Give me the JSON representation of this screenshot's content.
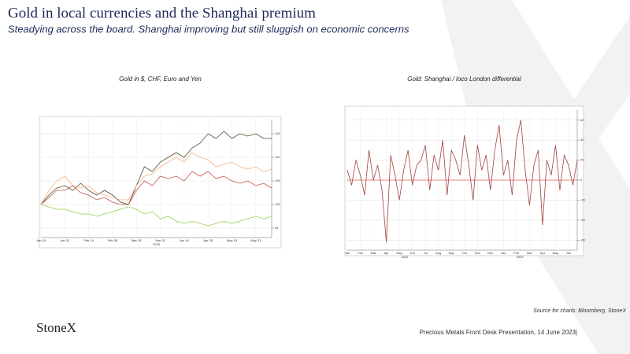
{
  "header": {
    "title": "Gold in local currencies and the Shanghai premium",
    "subtitle": "Steadying across the board.  Shanghai improving but still sluggish on economic concerns"
  },
  "chart_data": [
    {
      "type": "line",
      "title": "Gold in $, CHF, Euro and Yen",
      "categories": [
        "Jan 16",
        null,
        null,
        "Jan 31",
        null,
        null,
        "Feb 14",
        null,
        null,
        "Feb 28",
        null,
        null,
        "Mar 15",
        null,
        null,
        "Mar 31",
        null,
        null,
        "Apr 14",
        null,
        null,
        "Apr 28",
        null,
        null,
        "May 15",
        null,
        null,
        "May 31",
        null,
        null
      ],
      "x_group_labels": [
        "2023"
      ],
      "series": [
        {
          "color": "#4a4a2a",
          "values": [
            100,
            102,
            103.5,
            104,
            103,
            104.5,
            103,
            102,
            103,
            102,
            100.5,
            100,
            104,
            108,
            107,
            109,
            110,
            111,
            110,
            112,
            113,
            115,
            114,
            115.5,
            114,
            115,
            114.5,
            115,
            114,
            114
          ]
        },
        {
          "color": "#f4b183",
          "values": [
            100,
            103,
            105,
            106,
            104,
            103.5,
            104,
            102.5,
            102,
            101.5,
            101,
            101,
            104,
            106,
            106.5,
            108,
            109,
            110,
            109,
            111,
            110,
            109.5,
            108,
            108.5,
            109,
            108,
            107.5,
            108,
            107,
            107.5
          ]
        },
        {
          "color": "#c0504d",
          "values": [
            100,
            101.5,
            103,
            103,
            104,
            102.5,
            102,
            101,
            101.5,
            100.5,
            100,
            100,
            103,
            105,
            104,
            106,
            105.5,
            106,
            105,
            107,
            106,
            107,
            105.5,
            106,
            105,
            104.5,
            105,
            104,
            104.5,
            103.5
          ]
        },
        {
          "color": "#92d050",
          "values": [
            100,
            99.5,
            99,
            99,
            98.5,
            98,
            98,
            97.5,
            98,
            98.5,
            99,
            99.5,
            99,
            98,
            98.5,
            97,
            97.5,
            96.5,
            96,
            96.5,
            96,
            95.5,
            96,
            96.5,
            96,
            96.5,
            97,
            97.5,
            97,
            97.5
          ]
        }
      ],
      "ylim": [
        93,
        118
      ],
      "yticks": [
        95,
        100,
        105,
        110,
        115
      ],
      "grid": true
    },
    {
      "type": "line",
      "title": "Gold: Shanghai / loco London differential",
      "categories": [
        "Jan",
        null,
        null,
        "Feb",
        null,
        null,
        "Mar",
        null,
        null,
        "Apr",
        null,
        null,
        "May",
        null,
        null,
        "Jun",
        null,
        null,
        "Jul",
        null,
        null,
        "Aug",
        null,
        null,
        "Sep",
        null,
        null,
        "Oct",
        null,
        null,
        "Nov",
        null,
        null,
        "Dec",
        null,
        null,
        "Jan",
        null,
        null,
        "Feb",
        null,
        null,
        "Mar",
        null,
        null,
        "Apr",
        null,
        null,
        "May",
        null,
        null,
        "Jun",
        null,
        null
      ],
      "x_group_labels": [
        "2022",
        "2023"
      ],
      "series": [
        {
          "color": "#a0413f",
          "values": [
            10,
            -5,
            20,
            5,
            -15,
            30,
            0,
            15,
            -10,
            -62,
            25,
            5,
            -20,
            10,
            30,
            -5,
            15,
            20,
            35,
            -10,
            25,
            10,
            40,
            -15,
            30,
            20,
            5,
            45,
            15,
            -20,
            35,
            10,
            25,
            -10,
            30,
            55,
            5,
            20,
            -15,
            40,
            60,
            10,
            -25,
            15,
            30,
            -45,
            20,
            5,
            35,
            -10,
            25,
            15,
            -5,
            20
          ]
        }
      ],
      "ylim": [
        -70,
        70
      ],
      "yticks": [
        60,
        40,
        20,
        0,
        -20,
        -40,
        -60
      ],
      "grid": true,
      "zero_line_color": "#e06060"
    }
  ],
  "source": "Source for charts: Bloomberg, StoneX",
  "logo": "StoneX",
  "footer": "Precious Metals Front Desk Presentation, 14 June 2023|"
}
